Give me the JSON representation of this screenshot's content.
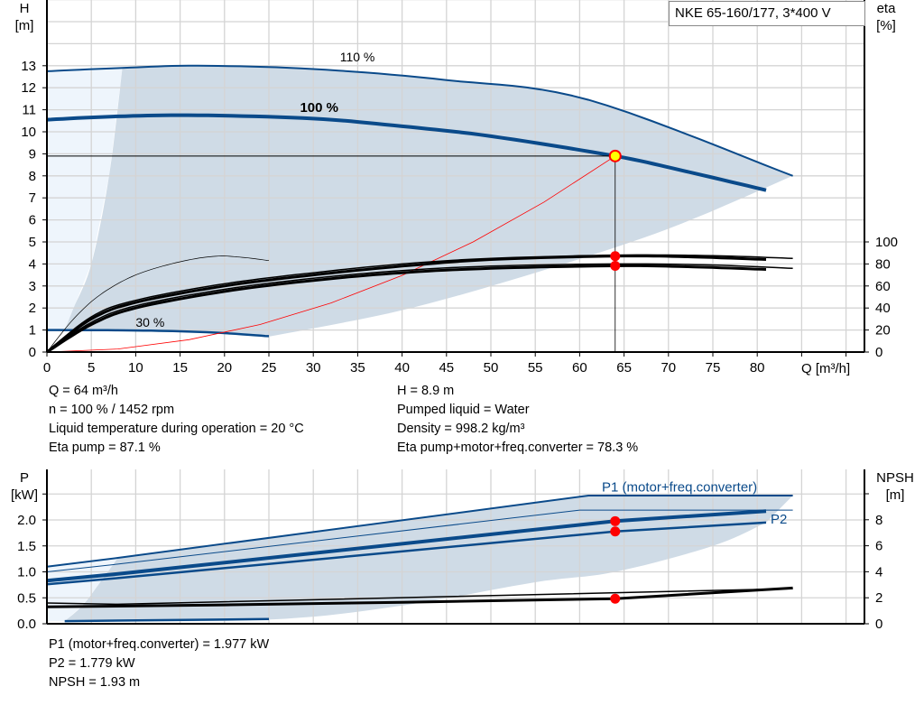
{
  "colors": {
    "curve": "#0a4a8a",
    "fill": "#cfdbe6",
    "light_fill": "#eef5fc",
    "grid": "#d4d4d4",
    "system_curve": "#ff0000",
    "duty_point": "#ff0000",
    "duty_point_fill": "#ffff00",
    "eta": "#000000"
  },
  "chart_data": [
    {
      "type": "line",
      "title": "NKE 65-160/177, 3*400 V",
      "xlabel": "Q [m³/h]",
      "ylabel": "H",
      "ylabel_unit": "[m]",
      "y2label": "eta",
      "y2label_unit": "[%]",
      "xlim": [
        0,
        92
      ],
      "ylim": [
        0,
        16
      ],
      "y2lim": [
        0,
        131
      ],
      "xticks": [
        0,
        5,
        10,
        15,
        20,
        25,
        30,
        35,
        40,
        45,
        50,
        55,
        60,
        65,
        70,
        75,
        80
      ],
      "yticks": [
        0,
        1,
        2,
        3,
        4,
        5,
        6,
        7,
        8,
        9,
        10,
        11,
        12,
        13
      ],
      "y2ticks": [
        0,
        20,
        40,
        60,
        80,
        100
      ],
      "grid": true,
      "curves": [
        {
          "name": "110 %",
          "axis": "H",
          "style": "thin-blue",
          "points": [
            [
              0,
              12.75
            ],
            [
              8.5,
              12.9
            ],
            [
              17,
              13.0
            ],
            [
              30,
              12.85
            ],
            [
              45,
              12.35
            ],
            [
              61,
              11.45
            ],
            [
              84,
              8.0
            ]
          ]
        },
        {
          "name": "100 %",
          "axis": "H",
          "style": "thick-blue",
          "points": [
            [
              0,
              10.55
            ],
            [
              8,
              10.7
            ],
            [
              17,
              10.75
            ],
            [
              30,
              10.6
            ],
            [
              40,
              10.25
            ],
            [
              50,
              9.8
            ],
            [
              64,
              8.9
            ],
            [
              72,
              8.2
            ],
            [
              81,
              7.35
            ]
          ]
        },
        {
          "name": "30 %",
          "axis": "H",
          "style": "blue",
          "points": [
            [
              0,
              1.0
            ],
            [
              10,
              0.98
            ],
            [
              18,
              0.9
            ],
            [
              25,
              0.72
            ]
          ]
        },
        {
          "axis": "H",
          "style": "system",
          "points": [
            [
              0,
              0
            ],
            [
              8,
              0.14
            ],
            [
              16,
              0.56
            ],
            [
              24,
              1.25
            ],
            [
              32,
              2.23
            ],
            [
              40,
              3.48
            ],
            [
              48,
              5.0
            ],
            [
              56,
              6.81
            ],
            [
              64,
              8.9
            ]
          ]
        },
        {
          "axis": "eta",
          "style": "eta-thick",
          "points": [
            [
              0,
              0
            ],
            [
              5,
              30
            ],
            [
              10,
              45
            ],
            [
              20,
              60
            ],
            [
              30,
              70
            ],
            [
              40,
              78
            ],
            [
              50,
              84
            ],
            [
              64,
              87.1
            ],
            [
              72,
              86.5
            ],
            [
              81,
              84
            ]
          ]
        },
        {
          "axis": "eta",
          "style": "eta-thick",
          "points": [
            [
              0,
              0
            ],
            [
              5,
              25
            ],
            [
              10,
              40
            ],
            [
              20,
              55
            ],
            [
              30,
              65
            ],
            [
              40,
              72
            ],
            [
              50,
              76
            ],
            [
              64,
              78.3
            ],
            [
              72,
              77.5
            ],
            [
              81,
              75
            ]
          ]
        },
        {
          "axis": "eta",
          "style": "eta-thin",
          "points": [
            [
              0,
              0
            ],
            [
              5,
              32
            ],
            [
              10,
              47
            ],
            [
              20,
              62
            ],
            [
              30,
              72
            ],
            [
              40,
              80
            ],
            [
              50,
              85
            ],
            [
              64,
              88
            ],
            [
              75,
              87.5
            ],
            [
              84,
              85
            ]
          ]
        },
        {
          "axis": "eta",
          "style": "eta-thin",
          "points": [
            [
              0,
              0
            ],
            [
              5,
              27
            ],
            [
              10,
              42
            ],
            [
              20,
              57
            ],
            [
              30,
              67
            ],
            [
              40,
              74
            ],
            [
              50,
              78
            ],
            [
              64,
              80
            ],
            [
              75,
              79
            ],
            [
              84,
              76
            ]
          ]
        },
        {
          "axis": "eta",
          "style": "eta-hair",
          "points": [
            [
              0,
              0
            ],
            [
              3,
              30
            ],
            [
              6,
              52
            ],
            [
              10,
              70
            ],
            [
              15,
              82
            ],
            [
              19,
              87
            ],
            [
              22,
              86
            ],
            [
              25,
              83
            ]
          ]
        }
      ],
      "duty_point": {
        "q": 64,
        "h": 8.9,
        "eta_pump": 87.1,
        "eta_total": 78.3
      }
    },
    {
      "type": "line",
      "ylabel": "P",
      "ylabel_unit": "[kW]",
      "y2label": "NPSH",
      "y2label_unit": "[m]",
      "xlim": [
        0,
        92
      ],
      "ylim": [
        0,
        2.97
      ],
      "y2lim": [
        0,
        11.9
      ],
      "yticks": [
        "0.0",
        "0.5",
        "1.0",
        "1.5",
        "2.0"
      ],
      "y2ticks": [
        0,
        2,
        4,
        6,
        8
      ],
      "grid": true,
      "curves": [
        {
          "name": "P1 (motor+freq.converter)",
          "axis": "P",
          "style": "thin-blue",
          "points": [
            [
              0,
              1.1
            ],
            [
              8,
              1.27
            ],
            [
              61,
              2.47
            ],
            [
              84,
              2.47
            ]
          ]
        },
        {
          "axis": "P",
          "style": "hair-blue",
          "points": [
            [
              0,
              1.0
            ],
            [
              8,
              1.15
            ],
            [
              60,
              2.19
            ],
            [
              84,
              2.19
            ]
          ]
        },
        {
          "axis": "P",
          "style": "thick-blue",
          "points": [
            [
              0,
              0.83
            ],
            [
              8,
              0.96
            ],
            [
              64,
              1.977
            ],
            [
              81,
              2.17
            ]
          ]
        },
        {
          "name": "P2",
          "axis": "P",
          "style": "blue",
          "points": [
            [
              0,
              0.76
            ],
            [
              8,
              0.88
            ],
            [
              64,
              1.779
            ],
            [
              81,
              1.95
            ]
          ]
        },
        {
          "axis": "P",
          "style": "blue",
          "points": [
            [
              2,
              0.05
            ],
            [
              25,
              0.09
            ]
          ]
        },
        {
          "axis": "NPSH",
          "style": "eta-thick",
          "points": [
            [
              0,
              1.3
            ],
            [
              20,
              1.45
            ],
            [
              40,
              1.65
            ],
            [
              64,
              1.93
            ],
            [
              84,
              2.75
            ]
          ]
        },
        {
          "axis": "NPSH",
          "style": "eta-thin",
          "points": [
            [
              0,
              1.6
            ],
            [
              8,
              1.5
            ],
            [
              84,
              2.7
            ]
          ]
        }
      ],
      "duty_point": {
        "q": 64,
        "p1": 1.977,
        "p2": 1.779,
        "npsh": 1.93
      }
    }
  ],
  "info_top_left": [
    "Q = 64 m³/h",
    "n = 100 % / 1452 rpm",
    "Liquid temperature during operation = 20 °C",
    "Eta pump = 87.1 %"
  ],
  "info_top_right": [
    "H = 8.9 m",
    "Pumped liquid = Water",
    "Density = 998.2 kg/m³",
    "Eta pump+motor+freq.converter = 78.3 %"
  ],
  "info_bottom": [
    "P1 (motor+freq.converter) = 1.977 kW",
    "P2 = 1.779 kW",
    "NPSH = 1.93 m"
  ]
}
